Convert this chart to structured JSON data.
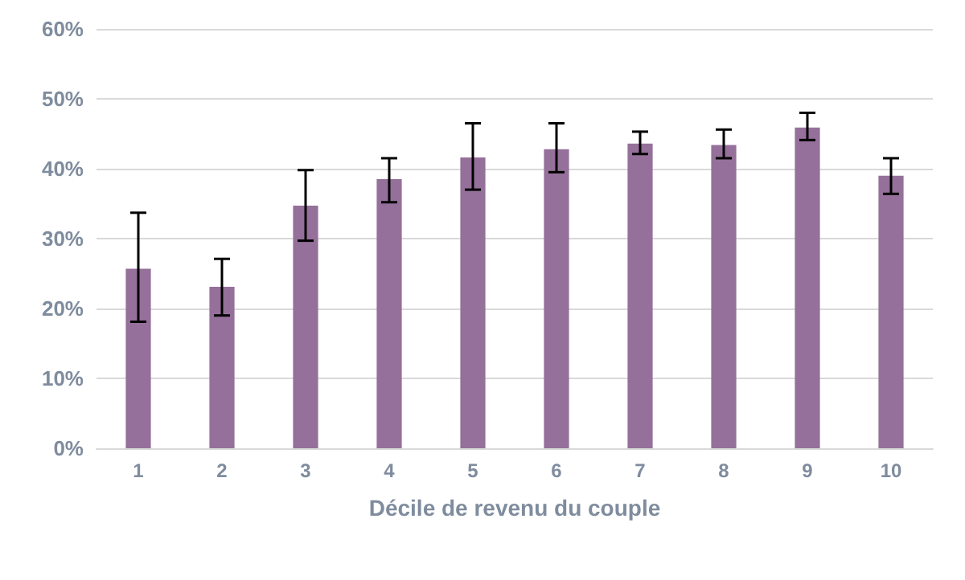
{
  "chart_data": {
    "type": "bar",
    "xlabel": "Décile de revenu du couple",
    "categories": [
      "1",
      "2",
      "3",
      "4",
      "5",
      "6",
      "7",
      "8",
      "9",
      "10"
    ],
    "values": [
      25.7,
      23.1,
      34.7,
      38.5,
      41.6,
      42.8,
      43.6,
      43.4,
      45.9,
      39.0
    ],
    "errors": [
      [
        18.1,
        33.7
      ],
      [
        19.0,
        27.1
      ],
      [
        29.7,
        39.8
      ],
      [
        35.2,
        41.5
      ],
      [
        37.0,
        46.5
      ],
      [
        39.5,
        46.5
      ],
      [
        42.1,
        45.3
      ],
      [
        41.5,
        45.6
      ],
      [
        44.1,
        48.0
      ],
      [
        36.4,
        41.5
      ]
    ],
    "color": "#95709a",
    "ylim": [
      0,
      60
    ],
    "yticks": [
      {
        "value": 0,
        "label": "0%"
      },
      {
        "value": 10,
        "label": "10%"
      },
      {
        "value": 20,
        "label": "20%"
      },
      {
        "value": 30,
        "label": "30%"
      },
      {
        "value": 40,
        "label": "40%"
      },
      {
        "value": 50,
        "label": "50%"
      },
      {
        "value": 60,
        "label": "60%"
      }
    ],
    "grid": "y"
  }
}
